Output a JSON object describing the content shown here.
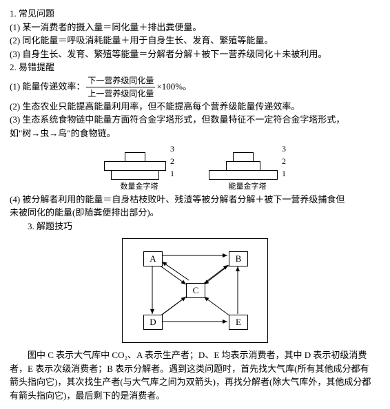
{
  "section_common": "1. 常见问题",
  "c1": "(1) 某一消费者的摄入量＝同化量＋排出粪便量。",
  "c2": "(2) 同化能量＝呼吸消耗能量＋用于自身生长、发育、繁殖等能量。",
  "c3": "(3) 自身生长、发育、繁殖等能量＝分解者分解＋被下一营养级同化＋未被利用。",
  "section_tips": "2. 易错提醒",
  "t1_lead": "(1) 能量传递效率：",
  "t1_top": "下一营养级同化量",
  "t1_bot": "上一营养级同化量",
  "t1_tail": "×100%。",
  "t2": "(2) 生态农业只能提高能量利用率，但不能提高每个营养级能量传递效率。",
  "t3a": "(3) 生态系统食物链中能量方面符合金字塔形式，但数量特征不一定符合金字塔形式，",
  "t3b": "如\"树→虫→鸟\"的食物链。",
  "pyr_label1": "1",
  "pyr_label2": "2",
  "pyr_label3": "3",
  "cap_num": "数量金字塔",
  "cap_energy": "能量金字塔",
  "t4a": "(4) 被分解者利用的能量＝自身枯枝败叶、残渣等被分解者分解＋被下一营养级捕食但",
  "t4b": "未被同化的能量(即随粪便排出部分)。",
  "section_skill": "3. 解题技巧",
  "nodeA": "A",
  "nodeB": "B",
  "nodeC": "C",
  "nodeD": "D",
  "nodeE": "E",
  "desc1": "图中 C 表示大气库中 CO₂、A 表示生产者；D、E 均表示消费者，其中 D 表示初级消费",
  "desc2": "者，E 表示次级消费者；B 表示分解者。遇到这类问题时，首先找大气库(所有其他成分都有",
  "desc3": "箭头指向它)，其次找生产者(与大气库之间为双箭头)，再找分解者(除大气库外，其他成分都",
  "desc4": "有箭头指向它)，最后剩下的是消费者。",
  "numPyr": {
    "w1": 30,
    "w2": 90,
    "w3": 70,
    "h": 14
  },
  "engPyr": {
    "w1": 30,
    "w2": 50,
    "w3": 100,
    "h": 14
  }
}
